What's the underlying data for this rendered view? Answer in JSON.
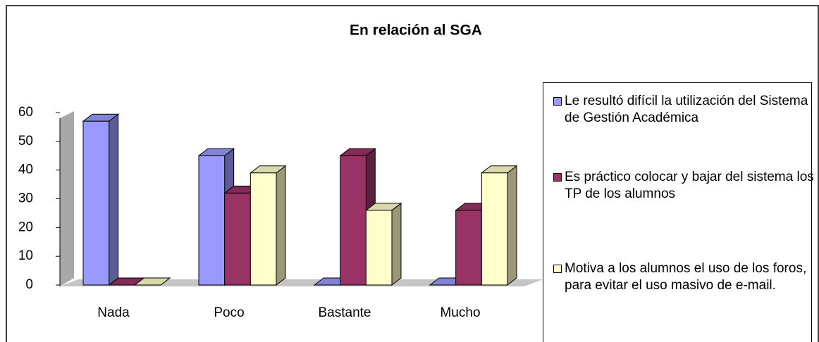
{
  "chart_data": {
    "type": "bar3d",
    "title": "En relación al SGA",
    "categories": [
      "Nada",
      "Poco",
      "Bastante",
      "Mucho"
    ],
    "series": [
      {
        "name": "Le resultó difícil la utilización del Sistema de Gestión Académica",
        "color": "#9999ff",
        "values": [
          57,
          45,
          0,
          0
        ]
      },
      {
        "name": "Es práctico colocar y bajar del sistema los TP de los alumnos",
        "color": "#993366",
        "values": [
          0,
          32,
          45,
          26
        ]
      },
      {
        "name": "Motiva a los alumnos el uso de los foros, para evitar el uso masivo de e-mail.",
        "color": "#ffffcc",
        "values": [
          0,
          39,
          26,
          39
        ]
      }
    ],
    "ylim": [
      0,
      60
    ],
    "yticks": [
      0,
      10,
      20,
      30,
      40,
      50,
      60
    ],
    "legend": "right"
  }
}
